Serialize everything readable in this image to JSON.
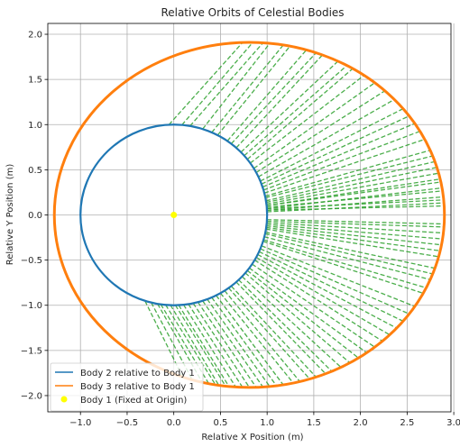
{
  "chart_data": {
    "type": "line",
    "title": "Relative Orbits of Celestial Bodies",
    "xlabel": "Relative X Position (m)",
    "ylabel": "Relative Y Position (m)",
    "xlim": [
      -1.35,
      2.97
    ],
    "ylim": [
      -2.18,
      2.12
    ],
    "xticks": [
      -1.0,
      -0.5,
      0.0,
      0.5,
      1.0,
      1.5,
      2.0,
      2.5,
      3.0
    ],
    "xtick_labels": [
      "−1.0",
      "−0.5",
      "0.0",
      "0.5",
      "1.0",
      "1.5",
      "2.0",
      "2.5",
      "3.0"
    ],
    "yticks": [
      -2.0,
      -1.5,
      -1.0,
      -0.5,
      0.0,
      0.5,
      1.0,
      1.5,
      2.0
    ],
    "ytick_labels": [
      "−2.0",
      "−1.5",
      "−1.0",
      "−0.5",
      "0.0",
      "0.5",
      "1.0",
      "1.5",
      "2.0"
    ],
    "grid": true,
    "legend_location": "lower-left",
    "series": [
      {
        "name": "Body 2 relative to Body 1",
        "kind": "circle",
        "center": [
          0,
          0
        ],
        "radius": 1.0,
        "color": "#1f77b4"
      },
      {
        "name": "Body 3 relative to Body 1",
        "kind": "ellipse",
        "center": [
          0.81,
          0.0
        ],
        "rx": 2.09,
        "ry": 1.91,
        "color": "#ff7f0e"
      },
      {
        "name": "Body 1 (Fixed at Origin)",
        "kind": "point",
        "x": 0,
        "y": 0,
        "color": "#ffff00"
      }
    ],
    "connector_lines": {
      "color": "#2ca02c",
      "style": "dashed",
      "angle_pairs_deg": [
        [
          93,
          92
        ],
        [
          85,
          89
        ],
        [
          72,
          84
        ],
        [
          62,
          78
        ],
        [
          55,
          73
        ],
        [
          48,
          68
        ],
        [
          41,
          60
        ],
        [
          35,
          54
        ],
        [
          28,
          46
        ],
        [
          22,
          38
        ],
        [
          18,
          32
        ],
        [
          14,
          26
        ],
        [
          12,
          22
        ],
        [
          9,
          18
        ],
        [
          7,
          14
        ],
        [
          6,
          11
        ],
        [
          5,
          8
        ],
        [
          4,
          5
        ],
        [
          3,
          3
        ],
        [
          80,
          86
        ],
        [
          66,
          80
        ],
        [
          52,
          70
        ],
        [
          44,
          63
        ],
        [
          38,
          58
        ],
        [
          31,
          50
        ],
        [
          25,
          42
        ],
        [
          20,
          35
        ],
        [
          16,
          29
        ],
        [
          11,
          20
        ],
        [
          8,
          16
        ],
        [
          6,
          12
        ],
        [
          4,
          9
        ],
        [
          3,
          6
        ],
        [
          2,
          4
        ],
        [
          -3,
          -3
        ],
        [
          -5,
          -6
        ],
        [
          -7,
          -10
        ],
        [
          -9,
          -14
        ],
        [
          -11,
          -18
        ],
        [
          -14,
          -22
        ],
        [
          -17,
          -27
        ],
        [
          -20,
          -32
        ],
        [
          -24,
          -38
        ],
        [
          -28,
          -44
        ],
        [
          -33,
          -50
        ],
        [
          -38,
          -56
        ],
        [
          -43,
          -62
        ],
        [
          -48,
          -67
        ],
        [
          -54,
          -72
        ],
        [
          -60,
          -77
        ],
        [
          -66,
          -82
        ],
        [
          -72,
          -86
        ],
        [
          -78,
          -90
        ],
        [
          -84,
          -94
        ],
        [
          -89,
          -97
        ],
        [
          -95,
          -100
        ],
        [
          -100,
          -104
        ],
        [
          -104,
          -107
        ],
        [
          -108,
          -110
        ],
        [
          -4,
          -4
        ],
        [
          -6,
          -8
        ],
        [
          -8,
          -12
        ],
        [
          -12,
          -20
        ],
        [
          -16,
          -25
        ],
        [
          -22,
          -35
        ],
        [
          -26,
          -41
        ],
        [
          -30,
          -47
        ],
        [
          -36,
          -53
        ],
        [
          -40,
          -59
        ],
        [
          -46,
          -65
        ],
        [
          -52,
          -70
        ],
        [
          -57,
          -75
        ],
        [
          -63,
          -80
        ],
        [
          -69,
          -84
        ],
        [
          -75,
          -88
        ],
        [
          -81,
          -92
        ],
        [
          -87,
          -96
        ],
        [
          -92,
          -99
        ],
        [
          -98,
          -102
        ]
      ]
    }
  }
}
